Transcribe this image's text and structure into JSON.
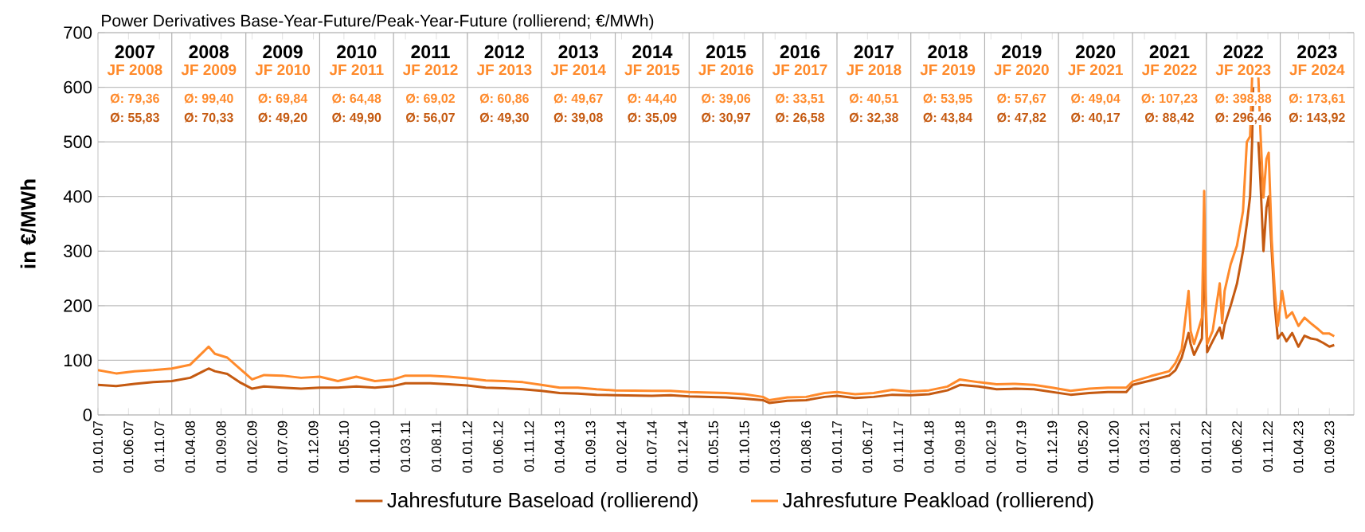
{
  "chart_data": {
    "type": "line",
    "title": "Power Derivatives Base-Year-Future/Peak-Year-Future (rollierend; €/MWh)",
    "ylabel": "in €/MWh",
    "x": [
      "2007-01-01",
      "2007-04-01",
      "2007-07-01",
      "2007-10-01",
      "2008-01-01",
      "2008-04-01",
      "2008-07-01",
      "2008-08-01",
      "2008-10-01",
      "2008-12-01",
      "2009-02-01",
      "2009-04-01",
      "2009-07-01",
      "2009-10-01",
      "2010-01-01",
      "2010-04-01",
      "2010-07-01",
      "2010-10-01",
      "2011-01-01",
      "2011-03-01",
      "2011-07-01",
      "2011-10-01",
      "2012-01-01",
      "2012-04-01",
      "2012-07-01",
      "2012-10-01",
      "2013-01-01",
      "2013-04-01",
      "2013-07-01",
      "2013-10-01",
      "2014-01-01",
      "2014-07-01",
      "2014-10-01",
      "2015-01-01",
      "2015-07-01",
      "2015-10-01",
      "2016-01-01",
      "2016-02-01",
      "2016-05-01",
      "2016-08-01",
      "2016-11-01",
      "2017-01-01",
      "2017-04-01",
      "2017-07-01",
      "2017-10-01",
      "2018-01-01",
      "2018-04-01",
      "2018-07-01",
      "2018-09-01",
      "2018-12-01",
      "2019-03-01",
      "2019-06-01",
      "2019-09-01",
      "2019-12-01",
      "2020-03-01",
      "2020-06-01",
      "2020-09-01",
      "2020-12-01",
      "2021-01-01",
      "2021-04-01",
      "2021-07-01",
      "2021-08-01",
      "2021-09-01",
      "2021-10-05",
      "2021-10-15",
      "2021-11-01",
      "2021-12-10",
      "2021-12-21",
      "2021-12-28",
      "2022-01-05",
      "2022-02-01",
      "2022-03-08",
      "2022-03-20",
      "2022-04-01",
      "2022-05-01",
      "2022-06-01",
      "2022-07-01",
      "2022-07-20",
      "2022-08-05",
      "2022-08-15",
      "2022-08-20",
      "2022-08-26",
      "2022-09-05",
      "2022-09-15",
      "2022-09-25",
      "2022-10-10",
      "2022-10-25",
      "2022-11-05",
      "2022-11-20",
      "2022-12-05",
      "2022-12-20",
      "2023-01-10",
      "2023-02-01",
      "2023-03-01",
      "2023-04-01",
      "2023-05-01",
      "2023-06-01",
      "2023-07-01",
      "2023-08-01",
      "2023-09-01",
      "2023-09-25"
    ],
    "series": [
      {
        "name": "Jahresfuture Baseload (rollierend)",
        "color": "#c55a11",
        "values": [
          55,
          53,
          57,
          60,
          62,
          68,
          85,
          80,
          75,
          60,
          48,
          52,
          50,
          48,
          50,
          50,
          52,
          50,
          53,
          58,
          58,
          56,
          54,
          50,
          49,
          47,
          44,
          40,
          39,
          37,
          36,
          35,
          36,
          34,
          32,
          30,
          27,
          22,
          26,
          27,
          33,
          35,
          31,
          33,
          37,
          36,
          38,
          45,
          55,
          52,
          47,
          48,
          47,
          42,
          37,
          40,
          42,
          42,
          55,
          63,
          72,
          82,
          105,
          150,
          130,
          110,
          140,
          300,
          200,
          115,
          135,
          160,
          140,
          165,
          200,
          240,
          300,
          350,
          400,
          500,
          600,
          null,
          null,
          500,
          430,
          300,
          380,
          400,
          300,
          200,
          140,
          150,
          135,
          150,
          125,
          145,
          140,
          138,
          132,
          125,
          128
        ]
      },
      {
        "name": "Jahresfuture Peakload (rollierend)",
        "color": "#ff8a2b",
        "values": [
          82,
          76,
          80,
          82,
          85,
          92,
          125,
          112,
          105,
          85,
          65,
          73,
          72,
          68,
          70,
          62,
          70,
          62,
          65,
          72,
          72,
          70,
          67,
          63,
          62,
          60,
          55,
          50,
          50,
          47,
          45,
          44,
          44,
          42,
          40,
          38,
          33,
          27,
          32,
          33,
          40,
          42,
          38,
          40,
          46,
          43,
          45,
          52,
          65,
          60,
          56,
          57,
          55,
          50,
          44,
          48,
          50,
          50,
          61,
          71,
          80,
          95,
          120,
          227,
          154,
          130,
          178,
          410,
          227,
          130,
          154,
          241,
          168,
          227,
          276,
          310,
          373,
          500,
          510,
          618,
          null,
          null,
          null,
          618,
          520,
          398,
          469,
          480,
          320,
          227,
          163,
          227,
          178,
          188,
          163,
          178,
          168,
          159,
          149,
          149,
          144
        ]
      }
    ],
    "xlim": [
      "2007-01-01",
      "2023-12-31"
    ],
    "xticks": [
      {
        "value": "2007-01-01",
        "label": "01.01.07"
      },
      {
        "value": "2007-06-01",
        "label": "01.06.07"
      },
      {
        "value": "2007-11-01",
        "label": "01.11.07"
      },
      {
        "value": "2008-04-01",
        "label": "01.04.08"
      },
      {
        "value": "2008-09-01",
        "label": "01.09.08"
      },
      {
        "value": "2009-02-01",
        "label": "01.02.09"
      },
      {
        "value": "2009-07-01",
        "label": "01.07.09"
      },
      {
        "value": "2009-12-01",
        "label": "01.12.09"
      },
      {
        "value": "2010-05-01",
        "label": "01.05.10"
      },
      {
        "value": "2010-10-01",
        "label": "01.10.10"
      },
      {
        "value": "2011-03-01",
        "label": "01.03.11"
      },
      {
        "value": "2011-08-01",
        "label": "01.08.11"
      },
      {
        "value": "2012-01-01",
        "label": "01.01.12"
      },
      {
        "value": "2012-06-01",
        "label": "01.06.12"
      },
      {
        "value": "2012-11-01",
        "label": "01.11.12"
      },
      {
        "value": "2013-04-01",
        "label": "01.04.13"
      },
      {
        "value": "2013-09-01",
        "label": "01.09.13"
      },
      {
        "value": "2014-02-01",
        "label": "01.02.14"
      },
      {
        "value": "2014-07-01",
        "label": "01.07.14"
      },
      {
        "value": "2014-12-01",
        "label": "01.12.14"
      },
      {
        "value": "2015-05-01",
        "label": "01.05.15"
      },
      {
        "value": "2015-10-01",
        "label": "01.10.15"
      },
      {
        "value": "2016-03-01",
        "label": "01.03.16"
      },
      {
        "value": "2016-08-01",
        "label": "01.08.16"
      },
      {
        "value": "2017-01-01",
        "label": "01.01.17"
      },
      {
        "value": "2017-06-01",
        "label": "01.06.17"
      },
      {
        "value": "2017-11-01",
        "label": "01.11.17"
      },
      {
        "value": "2018-04-01",
        "label": "01.04.18"
      },
      {
        "value": "2018-09-01",
        "label": "01.09.18"
      },
      {
        "value": "2019-02-01",
        "label": "01.02.19"
      },
      {
        "value": "2019-07-01",
        "label": "01.07.19"
      },
      {
        "value": "2019-12-01",
        "label": "01.12.19"
      },
      {
        "value": "2020-05-01",
        "label": "01.05.20"
      },
      {
        "value": "2020-10-01",
        "label": "01.10.20"
      },
      {
        "value": "2021-03-01",
        "label": "01.03.21"
      },
      {
        "value": "2021-08-01",
        "label": "01.08.21"
      },
      {
        "value": "2022-01-01",
        "label": "01.01.22"
      },
      {
        "value": "2022-06-01",
        "label": "01.06.22"
      },
      {
        "value": "2022-11-01",
        "label": "01.11.22"
      },
      {
        "value": "2023-04-01",
        "label": "01.04.23"
      },
      {
        "value": "2023-09-01",
        "label": "01.09.23"
      }
    ],
    "ylim": [
      0,
      700
    ],
    "yticks": [
      0,
      100,
      200,
      300,
      400,
      500,
      600,
      700
    ],
    "grid": "y",
    "legend": "bottom",
    "ref_lines": [
      {
        "axis": "x",
        "value": "2008-01-01"
      },
      {
        "axis": "x",
        "value": "2009-01-01"
      },
      {
        "axis": "x",
        "value": "2010-01-01"
      },
      {
        "axis": "x",
        "value": "2011-01-01"
      },
      {
        "axis": "x",
        "value": "2012-01-01"
      },
      {
        "axis": "x",
        "value": "2013-01-01"
      },
      {
        "axis": "x",
        "value": "2014-01-01"
      },
      {
        "axis": "x",
        "value": "2015-01-01"
      },
      {
        "axis": "x",
        "value": "2016-01-01"
      },
      {
        "axis": "x",
        "value": "2017-01-01"
      },
      {
        "axis": "x",
        "value": "2018-01-01"
      },
      {
        "axis": "x",
        "value": "2019-01-01"
      },
      {
        "axis": "x",
        "value": "2020-01-01"
      },
      {
        "axis": "x",
        "value": "2021-01-01"
      },
      {
        "axis": "x",
        "value": "2022-01-01"
      },
      {
        "axis": "x",
        "value": "2023-01-01"
      }
    ],
    "annotations": [
      "2007",
      "JF 2008",
      "Ø: 79,36",
      "Ø: 55,83",
      "2008",
      "JF 2009",
      "Ø: 99,40",
      "Ø: 70,33",
      "2009",
      "JF 2010",
      "Ø: 69,84",
      "Ø: 49,20",
      "2010",
      "JF 2011",
      "Ø: 64,48",
      "Ø: 49,90",
      "2011",
      "JF 2012",
      "Ø: 69,02",
      "Ø: 56,07",
      "2012",
      "JF 2013",
      "Ø: 60,86",
      "Ø: 49,30",
      "2013",
      "JF 2014",
      "Ø: 49,67",
      "Ø: 39,08",
      "2014",
      "JF 2015",
      "Ø: 44,40",
      "Ø: 35,09",
      "2015",
      "JF 2016",
      "Ø: 39,06",
      "Ø: 30,97",
      "2016",
      "JF 2017",
      "Ø: 33,51",
      "Ø: 26,58",
      "2017",
      "JF 2018",
      "Ø: 40,51",
      "Ø: 32,38",
      "2018",
      "JF 2019",
      "Ø: 53,95",
      "Ø: 43,84",
      "2019",
      "JF 2020",
      "Ø: 57,67",
      "Ø: 47,82",
      "2020",
      "JF 2021",
      "Ø: 49,04",
      "Ø: 40,17",
      "2021",
      "JF 2022",
      "Ø: 107,23",
      "Ø: 88,42",
      "2022",
      "JF 2023",
      "Ø: 398,88",
      "Ø: 296,46",
      "2023",
      "JF 2024",
      "Ø: 173,61",
      "Ø: 143,92"
    ]
  }
}
